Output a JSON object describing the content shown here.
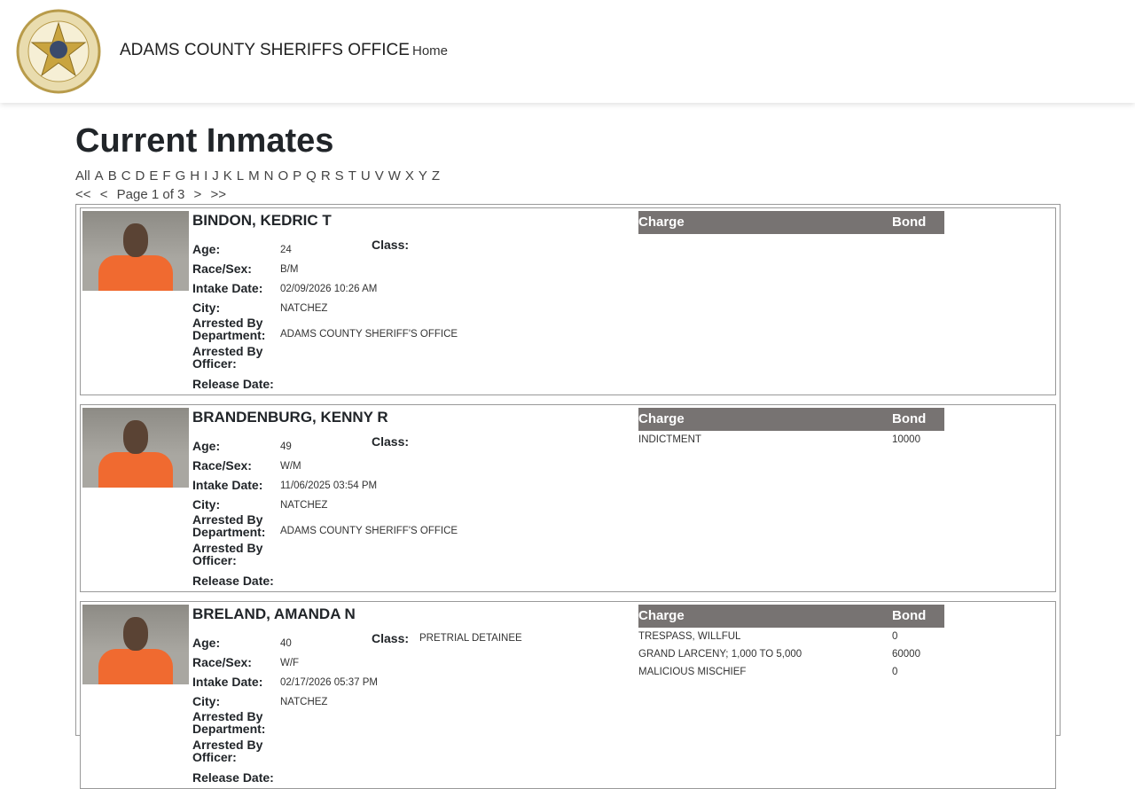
{
  "header": {
    "brand": "ADAMS COUNTY SHERIFFS OFFICE",
    "home": "Home",
    "logo_text": "ADAMS CO. SHERIFF'S OFFICE - CONNECTING OUR COMMUNITIES"
  },
  "page": {
    "title": "Current Inmates",
    "letters": [
      "All",
      "A",
      "B",
      "C",
      "D",
      "E",
      "F",
      "G",
      "H",
      "I",
      "J",
      "K",
      "L",
      "M",
      "N",
      "O",
      "P",
      "Q",
      "R",
      "S",
      "T",
      "U",
      "V",
      "W",
      "X",
      "Y",
      "Z"
    ],
    "pager": {
      "first": "<<",
      "prev": "<",
      "label": "Page 1 of 3",
      "next": ">",
      "last": ">>"
    }
  },
  "labels": {
    "age": "Age:",
    "race_sex": "Race/Sex:",
    "intake": "Intake Date:",
    "city": "City:",
    "arrested_dept": "Arrested By Department:",
    "arrested_officer": "Arrested By Officer:",
    "release": "Release Date:",
    "class": "Class:",
    "charge": "Charge",
    "bond": "Bond"
  },
  "inmates": [
    {
      "name": "BINDON, KEDRIC T",
      "age": "24",
      "race_sex": "B/M",
      "intake": "02/09/2026 10:26 AM",
      "city": "NATCHEZ",
      "arrested_dept": "ADAMS COUNTY SHERIFF'S OFFICE",
      "arrested_officer": "",
      "release": "",
      "class": "",
      "charges": []
    },
    {
      "name": "BRANDENBURG, KENNY R",
      "age": "49",
      "race_sex": "W/M",
      "intake": "11/06/2025 03:54 PM",
      "city": "NATCHEZ",
      "arrested_dept": "ADAMS COUNTY SHERIFF'S OFFICE",
      "arrested_officer": "",
      "release": "",
      "class": "",
      "charges": [
        {
          "charge": "INDICTMENT",
          "bond": "10000"
        }
      ]
    },
    {
      "name": "BRELAND, AMANDA N",
      "age": "40",
      "race_sex": "W/F",
      "intake": "02/17/2026 05:37 PM",
      "city": "NATCHEZ",
      "arrested_dept": "",
      "arrested_officer": "",
      "release": "",
      "class": "PRETRIAL DETAINEE",
      "charges": [
        {
          "charge": "TRESPASS, WILLFUL",
          "bond": "0"
        },
        {
          "charge": "GRAND LARCENY; 1,000 TO 5,000",
          "bond": "60000"
        },
        {
          "charge": "MALICIOUS MISCHIEF",
          "bond": "0"
        }
      ]
    }
  ]
}
